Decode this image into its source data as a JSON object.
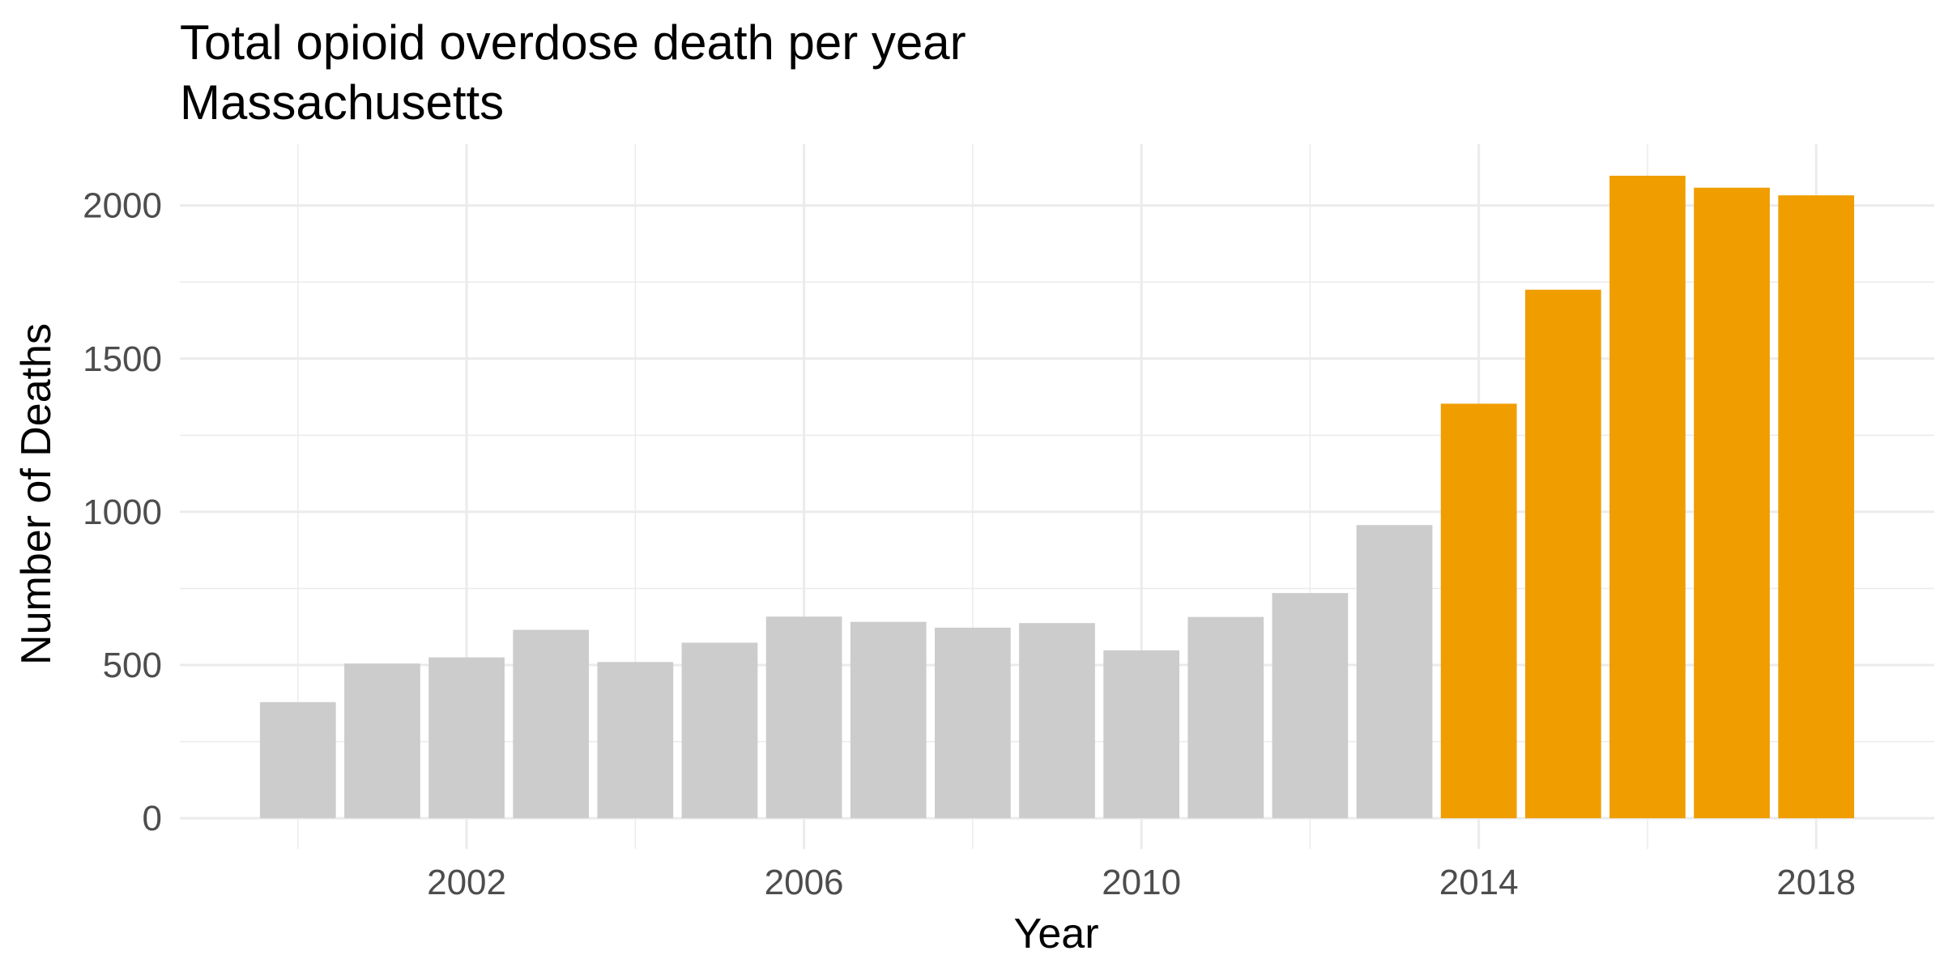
{
  "chart_data": {
    "type": "bar",
    "title": "Total opioid overdose death per year",
    "subtitle": "Massachusetts",
    "xlabel": "Year",
    "ylabel": "Number of Deaths",
    "categories": [
      2000,
      2001,
      2002,
      2003,
      2004,
      2005,
      2006,
      2007,
      2008,
      2009,
      2010,
      2011,
      2012,
      2013,
      2014,
      2015,
      2016,
      2017,
      2018
    ],
    "values": [
      379,
      505,
      525,
      615,
      510,
      573,
      658,
      641,
      622,
      637,
      548,
      657,
      735,
      957,
      1353,
      1725,
      2097,
      2058,
      2033
    ],
    "highlight_from": 2014,
    "x_ticks": [
      2002,
      2006,
      2010,
      2014,
      2018
    ],
    "y_ticks": [
      0,
      500,
      1000,
      1500,
      2000
    ],
    "xlim": [
      1998.6,
      2019.4
    ],
    "ylim": [
      -100,
      2200
    ],
    "grid": true,
    "legend": "none",
    "colors": {
      "default": "#cccccc",
      "highlight": "#f09d00",
      "grid": "#ebebeb"
    }
  }
}
